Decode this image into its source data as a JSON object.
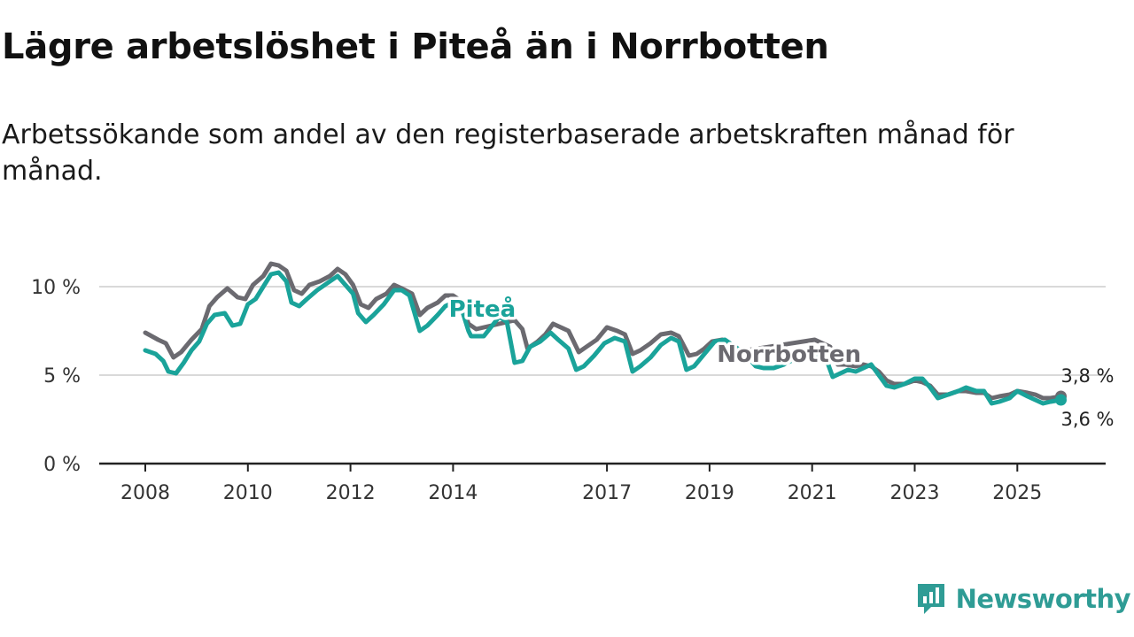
{
  "title": "Lägre arbetslöshet i Piteå än i Norrbotten",
  "subtitle": "Arbetssökande som andel av den registerbaserade arbetskraften månad för månad.",
  "brand": {
    "name": "Newsworthy",
    "icon": "newsworthy-logo-icon",
    "color": "#2f9c95"
  },
  "colors": {
    "pitea": "#1aa39a",
    "norrbotten": "#6b6a70",
    "grid": "#d9d9d9",
    "axis": "#222222"
  },
  "chart_data": {
    "type": "line",
    "title": "Lägre arbetslöshet i Piteå än i Norrbotten",
    "subtitle": "Arbetssökande som andel av den registerbaserade arbetskraften månad för månad.",
    "xlabel": "",
    "ylabel": "",
    "xlim": [
      2008,
      2026.5
    ],
    "ylim": [
      0,
      10
    ],
    "x_ticks": [
      {
        "value": 2008,
        "label": "2008"
      },
      {
        "value": 2010,
        "label": "2010"
      },
      {
        "value": 2012,
        "label": "2012"
      },
      {
        "value": 2014,
        "label": "2014"
      },
      {
        "value": 2017,
        "label": "2017"
      },
      {
        "value": 2019,
        "label": "2019"
      },
      {
        "value": 2021,
        "label": "2021"
      },
      {
        "value": 2023,
        "label": "2023"
      },
      {
        "value": 2025,
        "label": "2025"
      }
    ],
    "y_ticks": [
      {
        "value": 0,
        "label": "0 %"
      },
      {
        "value": 5,
        "label": "5 %"
      },
      {
        "value": 10,
        "label": "10 %"
      }
    ],
    "grid": true,
    "series": [
      {
        "name": "Norrbotten",
        "color": "#6b6a70",
        "end_label": "3,8 %",
        "points": [
          [
            2008.0,
            7.4
          ],
          [
            2008.25,
            7.0
          ],
          [
            2008.4,
            6.8
          ],
          [
            2008.55,
            6.0
          ],
          [
            2008.7,
            6.3
          ],
          [
            2008.9,
            7.0
          ],
          [
            2009.1,
            7.6
          ],
          [
            2009.25,
            8.9
          ],
          [
            2009.4,
            9.4
          ],
          [
            2009.6,
            9.9
          ],
          [
            2009.8,
            9.4
          ],
          [
            2009.95,
            9.3
          ],
          [
            2010.1,
            10.1
          ],
          [
            2010.3,
            10.6
          ],
          [
            2010.45,
            11.3
          ],
          [
            2010.6,
            11.2
          ],
          [
            2010.75,
            10.9
          ],
          [
            2010.9,
            9.8
          ],
          [
            2011.05,
            9.6
          ],
          [
            2011.2,
            10.1
          ],
          [
            2011.4,
            10.3
          ],
          [
            2011.6,
            10.6
          ],
          [
            2011.75,
            11.0
          ],
          [
            2011.9,
            10.7
          ],
          [
            2012.05,
            10.1
          ],
          [
            2012.2,
            9.0
          ],
          [
            2012.35,
            8.8
          ],
          [
            2012.5,
            9.3
          ],
          [
            2012.7,
            9.6
          ],
          [
            2012.85,
            10.1
          ],
          [
            2013.0,
            9.9
          ],
          [
            2013.2,
            9.6
          ],
          [
            2013.35,
            8.4
          ],
          [
            2013.5,
            8.8
          ],
          [
            2013.7,
            9.1
          ],
          [
            2013.85,
            9.5
          ],
          [
            2014.0,
            9.5
          ],
          [
            2014.15,
            9.2
          ],
          [
            2014.3,
            7.9
          ],
          [
            2014.45,
            7.6
          ],
          [
            2015.2,
            8.1
          ],
          [
            2015.35,
            7.6
          ],
          [
            2015.45,
            6.5
          ],
          [
            2015.65,
            6.9
          ],
          [
            2015.8,
            7.3
          ],
          [
            2015.95,
            7.9
          ],
          [
            2016.1,
            7.7
          ],
          [
            2016.25,
            7.5
          ],
          [
            2016.45,
            6.3
          ],
          [
            2016.6,
            6.6
          ],
          [
            2016.8,
            7.0
          ],
          [
            2017.0,
            7.7
          ],
          [
            2017.2,
            7.5
          ],
          [
            2017.35,
            7.3
          ],
          [
            2017.5,
            6.2
          ],
          [
            2017.65,
            6.4
          ],
          [
            2017.85,
            6.8
          ],
          [
            2018.05,
            7.3
          ],
          [
            2018.25,
            7.4
          ],
          [
            2018.4,
            7.2
          ],
          [
            2018.6,
            6.1
          ],
          [
            2018.75,
            6.2
          ],
          [
            2018.9,
            6.5
          ],
          [
            2019.05,
            6.9
          ],
          [
            2019.25,
            7.0
          ],
          [
            2019.4,
            6.7
          ],
          [
            2019.5,
            6.3
          ],
          [
            2021.05,
            7.0
          ],
          [
            2021.2,
            6.8
          ],
          [
            2021.35,
            6.6
          ],
          [
            2021.5,
            5.6
          ],
          [
            2021.65,
            5.6
          ],
          [
            2021.85,
            5.5
          ],
          [
            2022.0,
            5.6
          ],
          [
            2022.15,
            5.5
          ],
          [
            2022.3,
            5.2
          ],
          [
            2022.45,
            4.7
          ],
          [
            2022.6,
            4.5
          ],
          [
            2022.8,
            4.5
          ],
          [
            2023.0,
            4.7
          ],
          [
            2023.15,
            4.6
          ],
          [
            2023.3,
            4.4
          ],
          [
            2023.45,
            3.9
          ],
          [
            2023.65,
            3.9
          ],
          [
            2023.85,
            4.1
          ],
          [
            2024.0,
            4.1
          ],
          [
            2024.2,
            4.0
          ],
          [
            2024.35,
            4.0
          ],
          [
            2024.5,
            3.7
          ],
          [
            2024.65,
            3.8
          ],
          [
            2024.85,
            3.9
          ],
          [
            2025.0,
            4.1
          ],
          [
            2025.2,
            4.0
          ],
          [
            2025.35,
            3.9
          ],
          [
            2025.5,
            3.7
          ],
          [
            2025.65,
            3.7
          ],
          [
            2025.85,
            3.8
          ]
        ]
      },
      {
        "name": "Piteå",
        "color": "#1aa39a",
        "end_label": "3,6 %",
        "points": [
          [
            2008.0,
            6.4
          ],
          [
            2008.2,
            6.2
          ],
          [
            2008.35,
            5.8
          ],
          [
            2008.45,
            5.2
          ],
          [
            2008.6,
            5.1
          ],
          [
            2008.75,
            5.7
          ],
          [
            2008.9,
            6.4
          ],
          [
            2009.05,
            6.9
          ],
          [
            2009.2,
            7.9
          ],
          [
            2009.35,
            8.4
          ],
          [
            2009.55,
            8.5
          ],
          [
            2009.7,
            7.8
          ],
          [
            2009.85,
            7.9
          ],
          [
            2010.0,
            9.0
          ],
          [
            2010.15,
            9.3
          ],
          [
            2010.3,
            10.0
          ],
          [
            2010.45,
            10.7
          ],
          [
            2010.6,
            10.8
          ],
          [
            2010.75,
            10.3
          ],
          [
            2010.85,
            9.1
          ],
          [
            2011.0,
            8.9
          ],
          [
            2011.15,
            9.3
          ],
          [
            2011.35,
            9.8
          ],
          [
            2011.55,
            10.2
          ],
          [
            2011.75,
            10.6
          ],
          [
            2011.9,
            10.1
          ],
          [
            2012.05,
            9.6
          ],
          [
            2012.15,
            8.5
          ],
          [
            2012.3,
            8.0
          ],
          [
            2012.45,
            8.4
          ],
          [
            2012.65,
            9.0
          ],
          [
            2012.85,
            9.8
          ],
          [
            2013.0,
            9.8
          ],
          [
            2013.15,
            9.5
          ],
          [
            2013.35,
            7.5
          ],
          [
            2013.5,
            7.8
          ],
          [
            2013.7,
            8.4
          ],
          [
            2013.85,
            8.9
          ],
          [
            2014.0,
            9.1
          ],
          [
            2014.15,
            8.9
          ],
          [
            2014.3,
            7.5
          ],
          [
            2014.35,
            7.2
          ],
          [
            2014.6,
            7.2
          ],
          [
            2014.9,
            8.3
          ],
          [
            2015.05,
            8.0
          ],
          [
            2015.2,
            5.7
          ],
          [
            2015.35,
            5.8
          ],
          [
            2015.5,
            6.6
          ],
          [
            2015.7,
            6.9
          ],
          [
            2015.9,
            7.4
          ],
          [
            2016.05,
            7.0
          ],
          [
            2016.25,
            6.5
          ],
          [
            2016.4,
            5.3
          ],
          [
            2016.55,
            5.5
          ],
          [
            2016.75,
            6.1
          ],
          [
            2016.95,
            6.8
          ],
          [
            2017.15,
            7.1
          ],
          [
            2017.35,
            6.9
          ],
          [
            2017.5,
            5.2
          ],
          [
            2017.65,
            5.5
          ],
          [
            2017.85,
            6.0
          ],
          [
            2018.05,
            6.7
          ],
          [
            2018.25,
            7.1
          ],
          [
            2018.4,
            6.9
          ],
          [
            2018.55,
            5.3
          ],
          [
            2018.7,
            5.5
          ],
          [
            2018.9,
            6.2
          ],
          [
            2019.1,
            6.9
          ],
          [
            2019.3,
            7.0
          ],
          [
            2019.45,
            6.7
          ],
          [
            2019.6,
            6.4
          ],
          [
            2019.75,
            6.0
          ],
          [
            2019.9,
            5.5
          ],
          [
            2020.05,
            5.4
          ],
          [
            2020.25,
            5.4
          ],
          [
            2020.45,
            5.6
          ],
          [
            2020.5,
            5.7
          ],
          [
            2021.0,
            6.3
          ],
          [
            2021.15,
            6.0
          ],
          [
            2021.3,
            5.7
          ],
          [
            2021.4,
            4.9
          ],
          [
            2021.55,
            5.1
          ],
          [
            2021.7,
            5.3
          ],
          [
            2021.85,
            5.2
          ],
          [
            2022.0,
            5.4
          ],
          [
            2022.15,
            5.6
          ],
          [
            2022.3,
            5.0
          ],
          [
            2022.45,
            4.4
          ],
          [
            2022.6,
            4.3
          ],
          [
            2022.8,
            4.5
          ],
          [
            2023.0,
            4.8
          ],
          [
            2023.15,
            4.8
          ],
          [
            2023.3,
            4.3
          ],
          [
            2023.45,
            3.7
          ],
          [
            2023.65,
            3.9
          ],
          [
            2023.85,
            4.1
          ],
          [
            2024.0,
            4.3
          ],
          [
            2024.2,
            4.1
          ],
          [
            2024.35,
            4.1
          ],
          [
            2024.5,
            3.4
          ],
          [
            2024.65,
            3.5
          ],
          [
            2024.85,
            3.7
          ],
          [
            2025.0,
            4.1
          ],
          [
            2025.2,
            3.8
          ],
          [
            2025.35,
            3.6
          ],
          [
            2025.5,
            3.4
          ],
          [
            2025.65,
            3.5
          ],
          [
            2025.85,
            3.6
          ]
        ]
      }
    ],
    "annotations": [
      {
        "series": "Piteå",
        "text": "Piteå",
        "anchor": "above line near 2014.4"
      },
      {
        "series": "Norrbotten",
        "text": "Norrbotten",
        "anchor": "on line near 2020"
      }
    ]
  }
}
